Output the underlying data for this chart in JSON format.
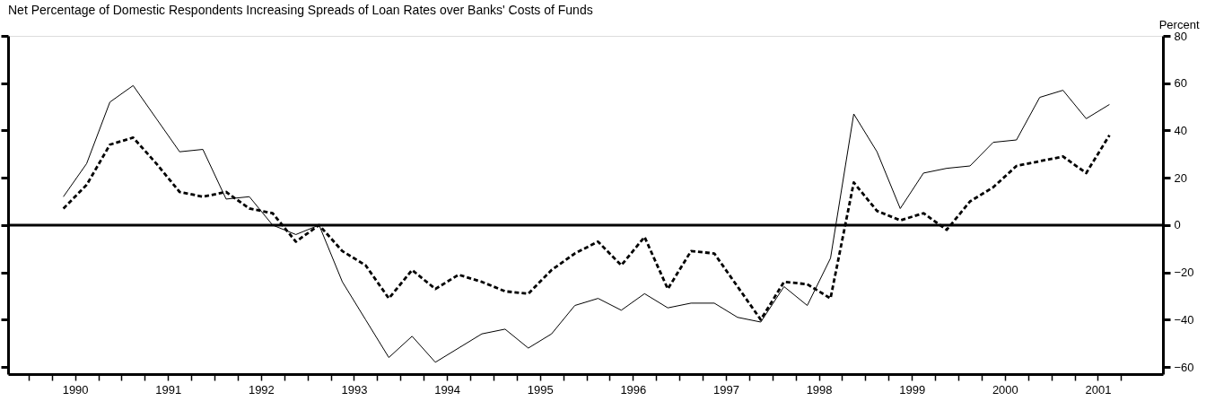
{
  "chart_data": {
    "type": "line",
    "title": "Net Percentage of Domestic Respondents Increasing Spreads of Loan Rates over Banks' Costs of Funds",
    "ylabel": "Percent",
    "x": [
      1990.375,
      1990.625,
      1990.875,
      1991.125,
      1991.375,
      1991.625,
      1991.875,
      1992.125,
      1992.375,
      1992.625,
      1992.875,
      1993.125,
      1993.375,
      1993.625,
      1993.875,
      1994.125,
      1994.375,
      1994.625,
      1994.875,
      1995.125,
      1995.375,
      1995.625,
      1995.875,
      1996.125,
      1996.375,
      1996.625,
      1996.875,
      1997.125,
      1997.375,
      1997.625,
      1997.875,
      1998.125,
      1998.375,
      1998.625,
      1998.875,
      1999.125,
      1999.375,
      1999.625,
      1999.875,
      2000.125,
      2000.375,
      2000.625,
      2000.875,
      2001.125,
      2001.375,
      2001.625
    ],
    "series": [
      {
        "color": "#000000",
        "line_style": "solid",
        "values": [
          12,
          26,
          52,
          59,
          45,
          31,
          32,
          11,
          12,
          0,
          -4,
          0,
          -24,
          -40,
          -56,
          -47,
          -58,
          -52,
          -46,
          -44,
          -52,
          -46,
          -34,
          -31,
          -36,
          -29,
          -35,
          -33,
          -33,
          -39,
          -41,
          -26,
          -34,
          -14,
          47,
          31,
          7,
          22,
          24,
          25,
          35,
          36,
          54,
          57,
          45,
          51
        ]
      },
      {
        "color": "#000000",
        "line_style": "dashed",
        "values": [
          7,
          17,
          34,
          37,
          26,
          14,
          12,
          14,
          7,
          5,
          -7,
          0,
          -11,
          -17,
          -31,
          -19,
          -27,
          -21,
          -24,
          -28,
          -29,
          -19,
          -12,
          -7,
          -17,
          -5,
          -27,
          -11,
          -12,
          -26,
          -40,
          -24,
          -25,
          -31,
          18,
          6,
          2,
          5,
          -2,
          10,
          16,
          25,
          27,
          29,
          22,
          38
        ]
      }
    ],
    "xlim": [
      1989.78,
      2002.2
    ],
    "xticks": [
      {
        "value": 1990,
        "label": null
      },
      {
        "value": 1990.25,
        "label": null
      },
      {
        "value": 1990.5,
        "label": "1990"
      },
      {
        "value": 1990.75,
        "label": null
      },
      {
        "value": 1991,
        "label": null
      },
      {
        "value": 1991.25,
        "label": null
      },
      {
        "value": 1991.5,
        "label": "1991"
      },
      {
        "value": 1991.75,
        "label": null
      },
      {
        "value": 1992,
        "label": null
      },
      {
        "value": 1992.25,
        "label": null
      },
      {
        "value": 1992.5,
        "label": "1992"
      },
      {
        "value": 1992.75,
        "label": null
      },
      {
        "value": 1993,
        "label": null
      },
      {
        "value": 1993.25,
        "label": null
      },
      {
        "value": 1993.5,
        "label": "1993"
      },
      {
        "value": 1993.75,
        "label": null
      },
      {
        "value": 1994,
        "label": null
      },
      {
        "value": 1994.25,
        "label": null
      },
      {
        "value": 1994.5,
        "label": "1994"
      },
      {
        "value": 1994.75,
        "label": null
      },
      {
        "value": 1995,
        "label": null
      },
      {
        "value": 1995.25,
        "label": null
      },
      {
        "value": 1995.5,
        "label": "1995"
      },
      {
        "value": 1995.75,
        "label": null
      },
      {
        "value": 1996,
        "label": null
      },
      {
        "value": 1996.25,
        "label": null
      },
      {
        "value": 1996.5,
        "label": "1996"
      },
      {
        "value": 1996.75,
        "label": null
      },
      {
        "value": 1997,
        "label": null
      },
      {
        "value": 1997.25,
        "label": null
      },
      {
        "value": 1997.5,
        "label": "1997"
      },
      {
        "value": 1997.75,
        "label": null
      },
      {
        "value": 1998,
        "label": null
      },
      {
        "value": 1998.25,
        "label": null
      },
      {
        "value": 1998.5,
        "label": "1998"
      },
      {
        "value": 1998.75,
        "label": null
      },
      {
        "value": 1999,
        "label": null
      },
      {
        "value": 1999.25,
        "label": null
      },
      {
        "value": 1999.5,
        "label": "1999"
      },
      {
        "value": 1999.75,
        "label": null
      },
      {
        "value": 2000,
        "label": null
      },
      {
        "value": 2000.25,
        "label": null
      },
      {
        "value": 2000.5,
        "label": "2000"
      },
      {
        "value": 2000.75,
        "label": null
      },
      {
        "value": 2001,
        "label": null
      },
      {
        "value": 2001.25,
        "label": null
      },
      {
        "value": 2001.5,
        "label": "2001"
      },
      {
        "value": 2001.75,
        "label": null
      }
    ],
    "ylim": [
      -63,
      80
    ],
    "yticks": [
      -60,
      -40,
      -20,
      0,
      20,
      40,
      60,
      80
    ],
    "ref_lines": [
      {
        "axis": "y",
        "value": 0,
        "color": "#000000"
      }
    ],
    "grid": false,
    "marker": "none"
  }
}
